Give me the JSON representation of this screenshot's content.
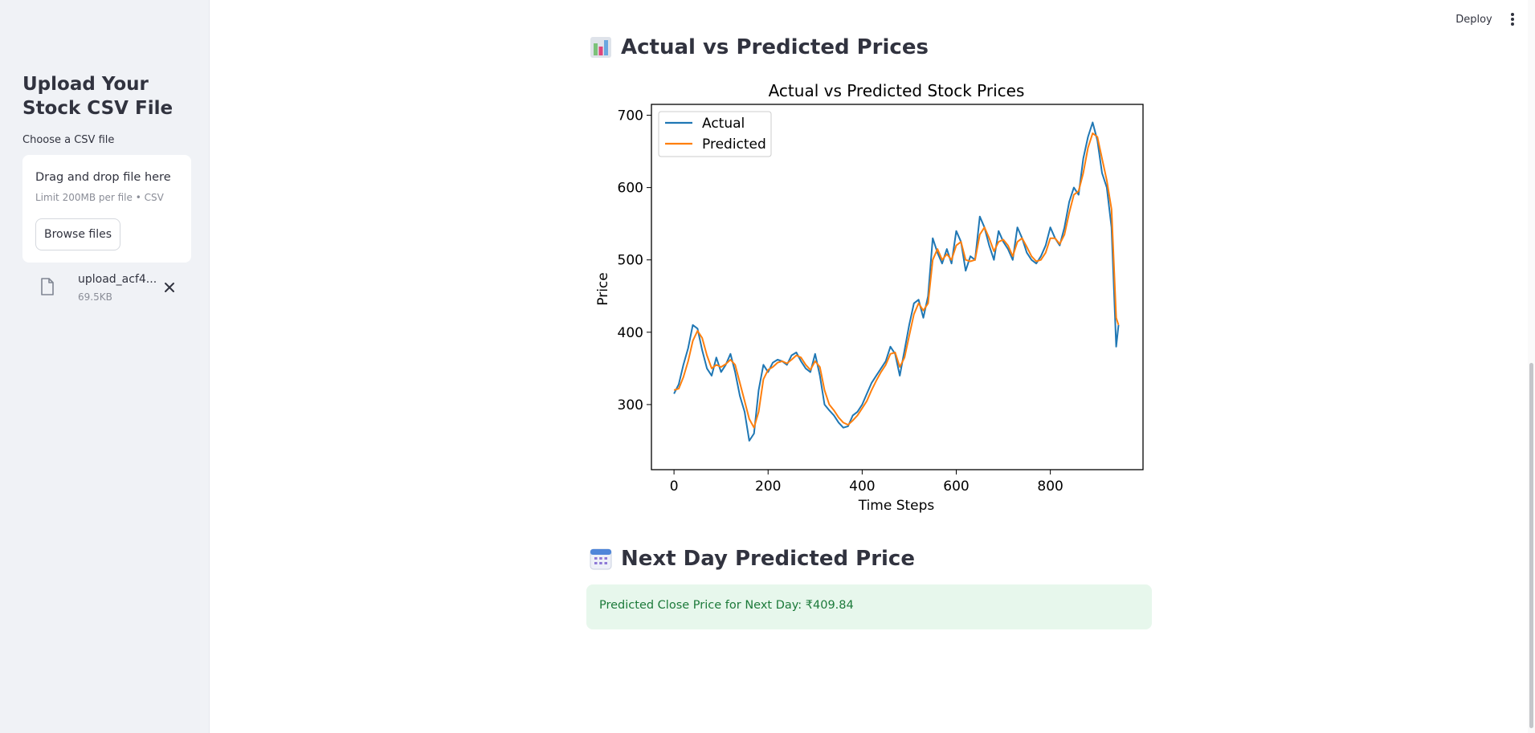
{
  "sidebar": {
    "title": "Upload Your Stock CSV File",
    "uploader_label": "Choose a CSV file",
    "dropzone": {
      "main_text": "Drag and drop file here",
      "sub_text": "Limit 200MB per file • CSV",
      "browse_label": "Browse files"
    },
    "file": {
      "name": "upload_acf4...",
      "size": "69.5KB"
    }
  },
  "header": {
    "deploy_label": "Deploy"
  },
  "sections": {
    "chart_title": "Actual vs Predicted Prices",
    "next_day_title": "Next Day Predicted Price"
  },
  "result": {
    "text": "Predicted Close Price for Next Day: ₹409.84"
  },
  "chart_data": {
    "type": "line",
    "title": "Actual vs Predicted Stock Prices",
    "xlabel": "Time Steps",
    "ylabel": "Price",
    "xlim": [
      -48,
      997
    ],
    "ylim": [
      210,
      715
    ],
    "xticks": [
      0,
      200,
      400,
      600,
      800
    ],
    "yticks": [
      300,
      400,
      500,
      600,
      700
    ],
    "legend": "top-left",
    "grid": false,
    "series": [
      {
        "name": "Actual",
        "color": "#1f77b4",
        "x": [
          0,
          10,
          20,
          30,
          40,
          50,
          60,
          70,
          80,
          90,
          100,
          110,
          120,
          130,
          140,
          150,
          160,
          170,
          180,
          190,
          200,
          210,
          220,
          230,
          240,
          250,
          260,
          270,
          280,
          290,
          300,
          310,
          320,
          330,
          340,
          350,
          360,
          370,
          380,
          390,
          400,
          410,
          420,
          430,
          440,
          450,
          460,
          470,
          480,
          490,
          500,
          510,
          520,
          530,
          540,
          550,
          560,
          570,
          580,
          590,
          600,
          610,
          620,
          630,
          640,
          650,
          660,
          670,
          680,
          690,
          700,
          710,
          720,
          730,
          740,
          750,
          760,
          770,
          780,
          790,
          800,
          810,
          820,
          830,
          840,
          850,
          860,
          870,
          880,
          890,
          900,
          910,
          920,
          930,
          940,
          945
        ],
        "values": [
          315,
          328,
          355,
          378,
          410,
          405,
          375,
          350,
          340,
          365,
          345,
          355,
          370,
          345,
          312,
          290,
          250,
          260,
          320,
          355,
          345,
          358,
          362,
          360,
          355,
          368,
          372,
          360,
          350,
          345,
          370,
          340,
          300,
          292,
          285,
          275,
          268,
          270,
          285,
          290,
          300,
          315,
          330,
          340,
          350,
          360,
          380,
          370,
          340,
          375,
          410,
          440,
          445,
          420,
          450,
          530,
          510,
          495,
          515,
          495,
          540,
          525,
          485,
          505,
          500,
          560,
          545,
          520,
          500,
          540,
          525,
          515,
          500,
          545,
          530,
          510,
          500,
          495,
          505,
          520,
          545,
          530,
          520,
          545,
          580,
          600,
          590,
          640,
          670,
          690,
          665,
          620,
          600,
          545,
          380,
          410
        ]
      },
      {
        "name": "Predicted",
        "color": "#ff7f0e",
        "x": [
          0,
          10,
          20,
          30,
          40,
          50,
          60,
          70,
          80,
          90,
          100,
          110,
          120,
          130,
          140,
          150,
          160,
          170,
          180,
          190,
          200,
          210,
          220,
          230,
          240,
          250,
          260,
          270,
          280,
          290,
          300,
          310,
          320,
          330,
          340,
          350,
          360,
          370,
          380,
          390,
          400,
          410,
          420,
          430,
          440,
          450,
          460,
          470,
          480,
          490,
          500,
          510,
          520,
          530,
          540,
          550,
          560,
          570,
          580,
          590,
          600,
          610,
          620,
          630,
          640,
          650,
          660,
          670,
          680,
          690,
          700,
          710,
          720,
          730,
          740,
          750,
          760,
          770,
          780,
          790,
          800,
          810,
          820,
          830,
          840,
          850,
          860,
          870,
          880,
          890,
          900,
          910,
          920,
          930,
          940,
          945
        ],
        "values": [
          320,
          322,
          338,
          360,
          388,
          402,
          392,
          368,
          350,
          355,
          352,
          356,
          362,
          355,
          330,
          305,
          280,
          268,
          290,
          335,
          348,
          352,
          358,
          360,
          357,
          362,
          368,
          365,
          355,
          348,
          360,
          352,
          320,
          300,
          292,
          282,
          275,
          272,
          278,
          285,
          295,
          305,
          320,
          333,
          345,
          355,
          370,
          372,
          352,
          365,
          395,
          425,
          440,
          430,
          440,
          500,
          515,
          500,
          508,
          500,
          520,
          525,
          500,
          498,
          500,
          535,
          545,
          530,
          512,
          525,
          528,
          520,
          505,
          525,
          530,
          518,
          505,
          498,
          500,
          510,
          530,
          530,
          522,
          535,
          565,
          590,
          595,
          620,
          655,
          675,
          670,
          640,
          610,
          570,
          420,
          410
        ]
      }
    ]
  }
}
